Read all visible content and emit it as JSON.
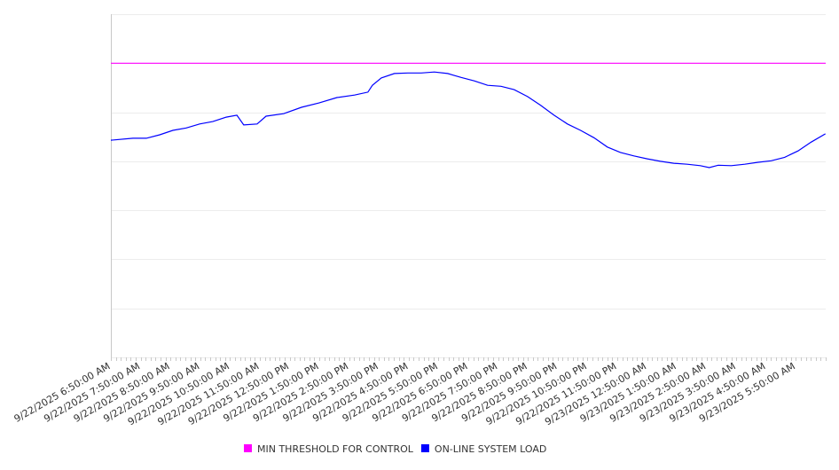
{
  "chart_data": {
    "type": "line",
    "title": "",
    "xlabel": "",
    "ylabel": "",
    "x_units": "hours since 9/22/2025 6:50:00 AM",
    "xlim": [
      0,
      24
    ],
    "ylim": [
      0,
      7
    ],
    "y_gridlines": [
      0,
      1,
      2,
      3,
      4,
      5,
      6,
      7
    ],
    "y_tick_labels_shown": false,
    "grid": true,
    "legend_placement": "bottom-center",
    "x_tick_labels": [
      "9/22/2025 6:50:00 AM",
      "9/22/2025 7:50:00 AM",
      "9/22/2025 8:50:00 AM",
      "9/22/2025 9:50:00 AM",
      "9/22/2025 10:50:00 AM",
      "9/22/2025 11:50:00 AM",
      "9/22/2025 12:50:00 PM",
      "9/22/2025 1:50:00 PM",
      "9/22/2025 2:50:00 PM",
      "9/22/2025 3:50:00 PM",
      "9/22/2025 4:50:00 PM",
      "9/22/2025 5:50:00 PM",
      "9/22/2025 6:50:00 PM",
      "9/22/2025 7:50:00 PM",
      "9/22/2025 8:50:00 PM",
      "9/22/2025 9:50:00 PM",
      "9/22/2025 10:50:00 PM",
      "9/22/2025 11:50:00 PM",
      "9/23/2025 12:50:00 AM",
      "9/23/2025 1:50:00 AM",
      "9/23/2025 2:50:00 AM",
      "9/23/2025 3:50:00 AM",
      "9/23/2025 4:50:00 AM",
      "9/23/2025 5:50:00 AM"
    ],
    "series": [
      {
        "name": "MIN THRESHOLD FOR CONTROL",
        "color": "#ff00ff",
        "x": [
          0,
          24
        ],
        "values": [
          6,
          6
        ]
      },
      {
        "name": "ON-LINE SYSTEM LOAD",
        "color": "#0000ff",
        "x": [
          0,
          0.74,
          1.19,
          1.64,
          2.08,
          2.53,
          2.98,
          3.42,
          3.87,
          4.23,
          4.46,
          4.91,
          5.21,
          5.8,
          6.4,
          6.99,
          7.59,
          8.18,
          8.63,
          8.78,
          9.08,
          9.52,
          9.97,
          10.42,
          10.86,
          11.31,
          11.76,
          12.2,
          12.65,
          13.1,
          13.54,
          13.99,
          14.43,
          14.88,
          15.33,
          15.77,
          16.22,
          16.67,
          17.11,
          17.56,
          18.01,
          18.45,
          18.9,
          19.35,
          19.79,
          20.09,
          20.39,
          20.83,
          21.28,
          21.73,
          22.17,
          22.62,
          23.07,
          23.51,
          23.99
        ],
        "values": [
          4.43,
          4.47,
          4.47,
          4.54,
          4.63,
          4.68,
          4.76,
          4.81,
          4.9,
          4.94,
          4.74,
          4.76,
          4.92,
          4.97,
          5.1,
          5.19,
          5.3,
          5.35,
          5.41,
          5.55,
          5.7,
          5.79,
          5.8,
          5.8,
          5.82,
          5.79,
          5.71,
          5.64,
          5.55,
          5.53,
          5.46,
          5.32,
          5.14,
          4.94,
          4.76,
          4.63,
          4.48,
          4.29,
          4.18,
          4.11,
          4.05,
          4.0,
          3.96,
          3.94,
          3.91,
          3.87,
          3.92,
          3.91,
          3.94,
          3.98,
          4.01,
          4.08,
          4.21,
          4.39,
          4.56
        ]
      }
    ]
  }
}
